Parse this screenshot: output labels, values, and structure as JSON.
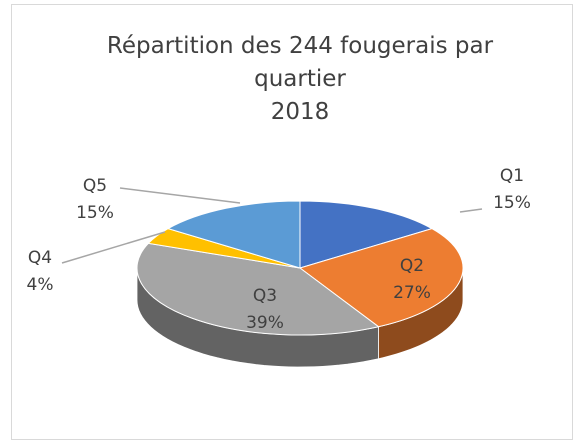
{
  "chart_data": {
    "type": "pie3d",
    "title": "Répartition des 244 fougerais par quartier",
    "subtitle": "2018",
    "categories": [
      "Q1",
      "Q2",
      "Q3",
      "Q4",
      "Q5"
    ],
    "values": [
      15,
      27,
      39,
      4,
      15
    ],
    "value_labels": [
      "15%",
      "27%",
      "39%",
      "4%",
      "15%"
    ],
    "colors": [
      "#4472c4",
      "#ed7d31",
      "#a5a5a5",
      "#ffc000",
      "#5b9bd5"
    ]
  }
}
